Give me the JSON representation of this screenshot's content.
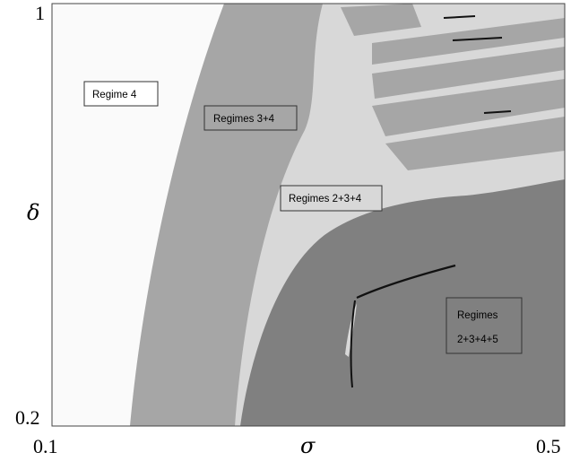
{
  "chart_data": {
    "type": "heatmap",
    "title": "",
    "xlabel": "σ",
    "ylabel": "δ",
    "xlim": [
      0.1,
      0.5
    ],
    "ylim": [
      0.2,
      1
    ],
    "x_tick_labels": [
      "0.1",
      "0.5"
    ],
    "y_tick_labels": [
      "1",
      "0.2"
    ],
    "regions": [
      {
        "label": "Regime 4",
        "color": "#fafafa"
      },
      {
        "label": "Regimes 3+4",
        "color": "#a6a6a6"
      },
      {
        "label": "Regimes 2+3+4",
        "color": "#d8d8d8"
      },
      {
        "label_lines": [
          "Regimes",
          "2+3+4+5"
        ],
        "color": "#808080"
      }
    ],
    "colors": {
      "regime4": "#fafafa",
      "regimes34": "#a6a6a6",
      "regimes234": "#d8d8d8",
      "regimes2345": "#808080",
      "regime5_marks": "#111111"
    }
  }
}
